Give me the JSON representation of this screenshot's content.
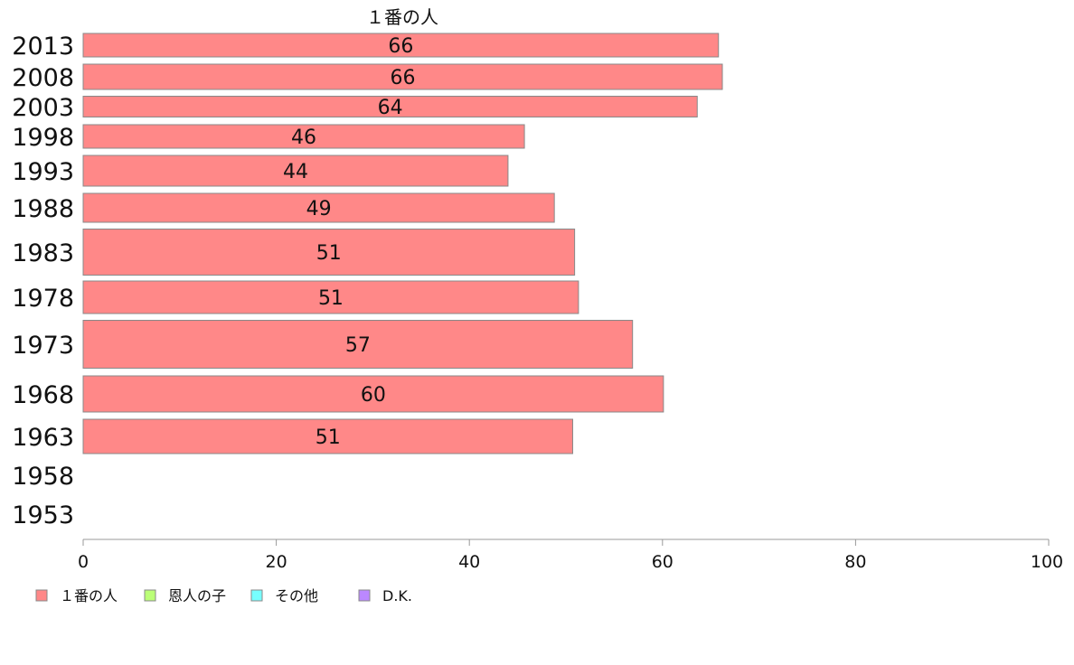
{
  "chart_data": {
    "type": "bar",
    "orientation": "horizontal",
    "title": "１番の人",
    "categories": [
      "2013",
      "2008",
      "2003",
      "1998",
      "1993",
      "1988",
      "1983",
      "1978",
      "1973",
      "1968",
      "1963",
      "1958",
      "1953"
    ],
    "series": [
      {
        "name": "１番の人",
        "color": "#ff8888",
        "values": [
          65.8,
          66.2,
          63.6,
          45.7,
          44.0,
          48.8,
          50.9,
          51.3,
          56.9,
          60.1,
          50.7,
          null,
          null
        ],
        "labels": [
          "66",
          "66",
          "64",
          "46",
          "44",
          "49",
          "51",
          "51",
          "57",
          "60",
          "51",
          "",
          ""
        ]
      }
    ],
    "legend": [
      {
        "label": "１番の人",
        "color": "#ff8888"
      },
      {
        "label": "恩人の子",
        "color": "#bbff77"
      },
      {
        "label": "その他",
        "color": "#77ffff"
      },
      {
        "label": "D.K.",
        "color": "#bb88ff"
      }
    ],
    "xlim": [
      0,
      100
    ],
    "xticks": [
      0,
      20,
      40,
      60,
      80,
      100
    ],
    "legend_position": "bottom-left",
    "grid": false
  }
}
